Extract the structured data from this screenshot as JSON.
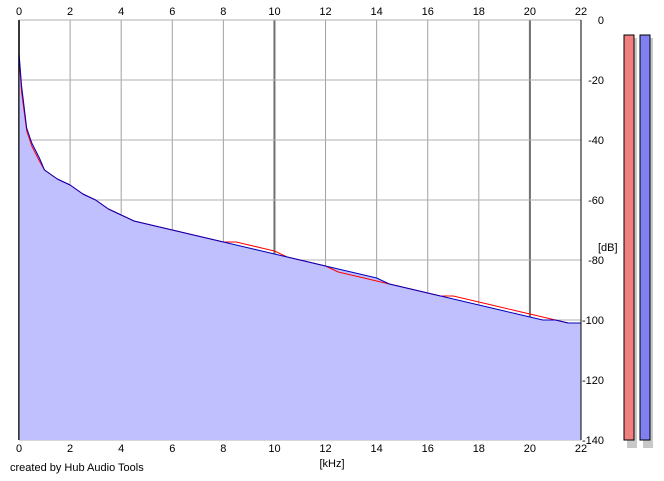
{
  "chart_data": {
    "type": "line",
    "xlabel": "[kHz]",
    "ylabel": "[dB]",
    "x_ticks": [
      0,
      2,
      4,
      6,
      8,
      10,
      12,
      14,
      16,
      18,
      20,
      22
    ],
    "y_ticks": [
      0,
      -20,
      -40,
      -60,
      -80,
      -100,
      -120,
      -140
    ],
    "xlim": [
      0,
      22
    ],
    "ylim": [
      -140,
      0
    ],
    "grid": true,
    "series": [
      {
        "color": "#ff0000",
        "x": [
          0.0,
          0.1,
          0.3,
          0.5,
          0.8,
          1.0,
          1.5,
          2.0,
          2.5,
          3.0,
          3.5,
          4.0,
          4.5,
          5.0,
          5.5,
          6.0,
          6.5,
          7.0,
          7.5,
          8.0,
          8.5,
          9.0,
          9.5,
          10.0,
          10.5,
          11.0,
          11.5,
          12.0,
          12.5,
          13.0,
          13.5,
          14.0,
          14.5,
          15.0,
          15.5,
          16.0,
          16.5,
          17.0,
          17.5,
          18.0,
          18.5,
          19.0,
          19.5,
          20.0,
          20.5,
          21.0,
          21.5,
          22.0
        ],
        "values": [
          -12,
          -24,
          -37,
          -42,
          -47,
          -50,
          -53,
          -55,
          -58,
          -60,
          -63,
          -65,
          -67,
          -68,
          -69,
          -70,
          -71,
          -72,
          -73,
          -74,
          -74,
          -75,
          -76,
          -77,
          -79,
          -80,
          -81,
          -82,
          -84,
          -85,
          -86,
          -87,
          -88,
          -89,
          -90,
          -91,
          -92,
          -92,
          -93,
          -94,
          -95,
          -96,
          -97,
          -98,
          -99,
          -100,
          -101,
          -101
        ]
      },
      {
        "color": "#0000c0",
        "x": [
          0.0,
          0.1,
          0.3,
          0.5,
          0.8,
          1.0,
          1.5,
          2.0,
          2.5,
          3.0,
          3.5,
          4.0,
          4.5,
          5.0,
          5.5,
          6.0,
          6.5,
          7.0,
          7.5,
          8.0,
          8.5,
          9.0,
          9.5,
          10.0,
          10.5,
          11.0,
          11.5,
          12.0,
          12.5,
          13.0,
          13.5,
          14.0,
          14.5,
          15.0,
          15.5,
          16.0,
          16.5,
          17.0,
          17.5,
          18.0,
          18.5,
          19.0,
          19.5,
          20.0,
          20.5,
          21.0,
          21.5,
          22.0
        ],
        "values": [
          -11,
          -22,
          -36,
          -41,
          -46,
          -50,
          -53,
          -55,
          -58,
          -60,
          -63,
          -65,
          -67,
          -68,
          -69,
          -70,
          -71,
          -72,
          -73,
          -74,
          -75,
          -76,
          -77,
          -78,
          -79,
          -80,
          -81,
          -82,
          -83,
          -84,
          -85,
          -86,
          -88,
          -89,
          -90,
          -91,
          -92,
          -93,
          -94,
          -95,
          -96,
          -97,
          -98,
          -99,
          -100,
          -100,
          -101,
          -101
        ]
      }
    ],
    "fill_color": "#c0c0ff",
    "meters": [
      {
        "color": "#f08080"
      },
      {
        "color": "#8080f0"
      }
    ]
  },
  "footer": {
    "credit": "created by Hub Audio Tools"
  }
}
